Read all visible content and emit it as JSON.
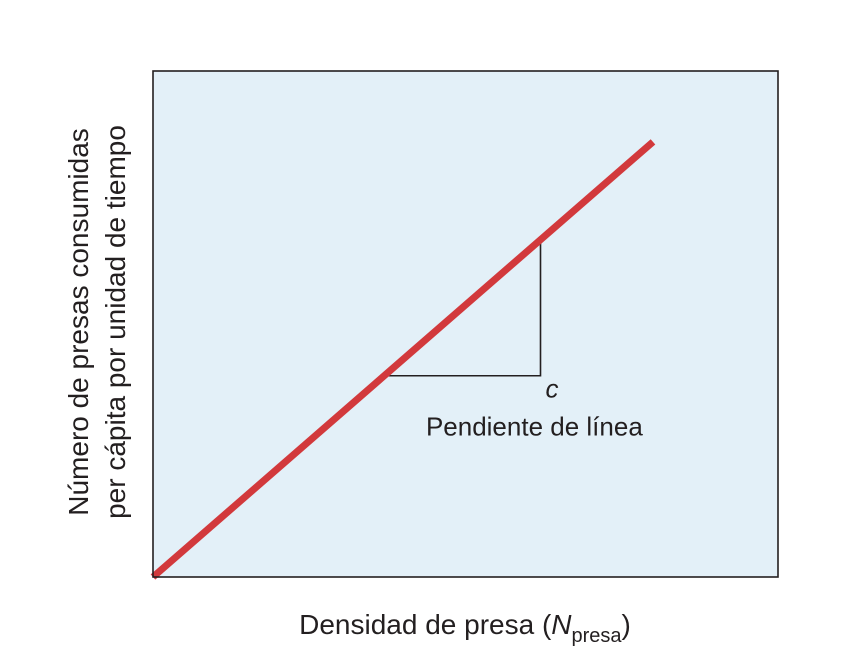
{
  "chart_data": {
    "type": "line",
    "title": "",
    "xlabel": {
      "main": "Densidad de presa (",
      "symbol": "N",
      "subscript": "presa",
      "close": ")"
    },
    "ylabel": {
      "line1": "Número de presas consumidas",
      "line2": "per cápita por unidad de tiempo"
    },
    "xlim": [
      0,
      1
    ],
    "ylim": [
      0,
      1
    ],
    "grid": false,
    "series": [
      {
        "color": "#d2393c",
        "x": [
          0,
          0.8
        ],
        "y": [
          0,
          0.86
        ]
      }
    ],
    "slope_triangle": {
      "x_start": 0.37,
      "x_end": 0.62,
      "label": "c",
      "caption": "Pendiente de línea"
    },
    "colors": {
      "plot_background": "#e3f0f8",
      "frame": "#231f20",
      "line": "#d2393c"
    }
  }
}
